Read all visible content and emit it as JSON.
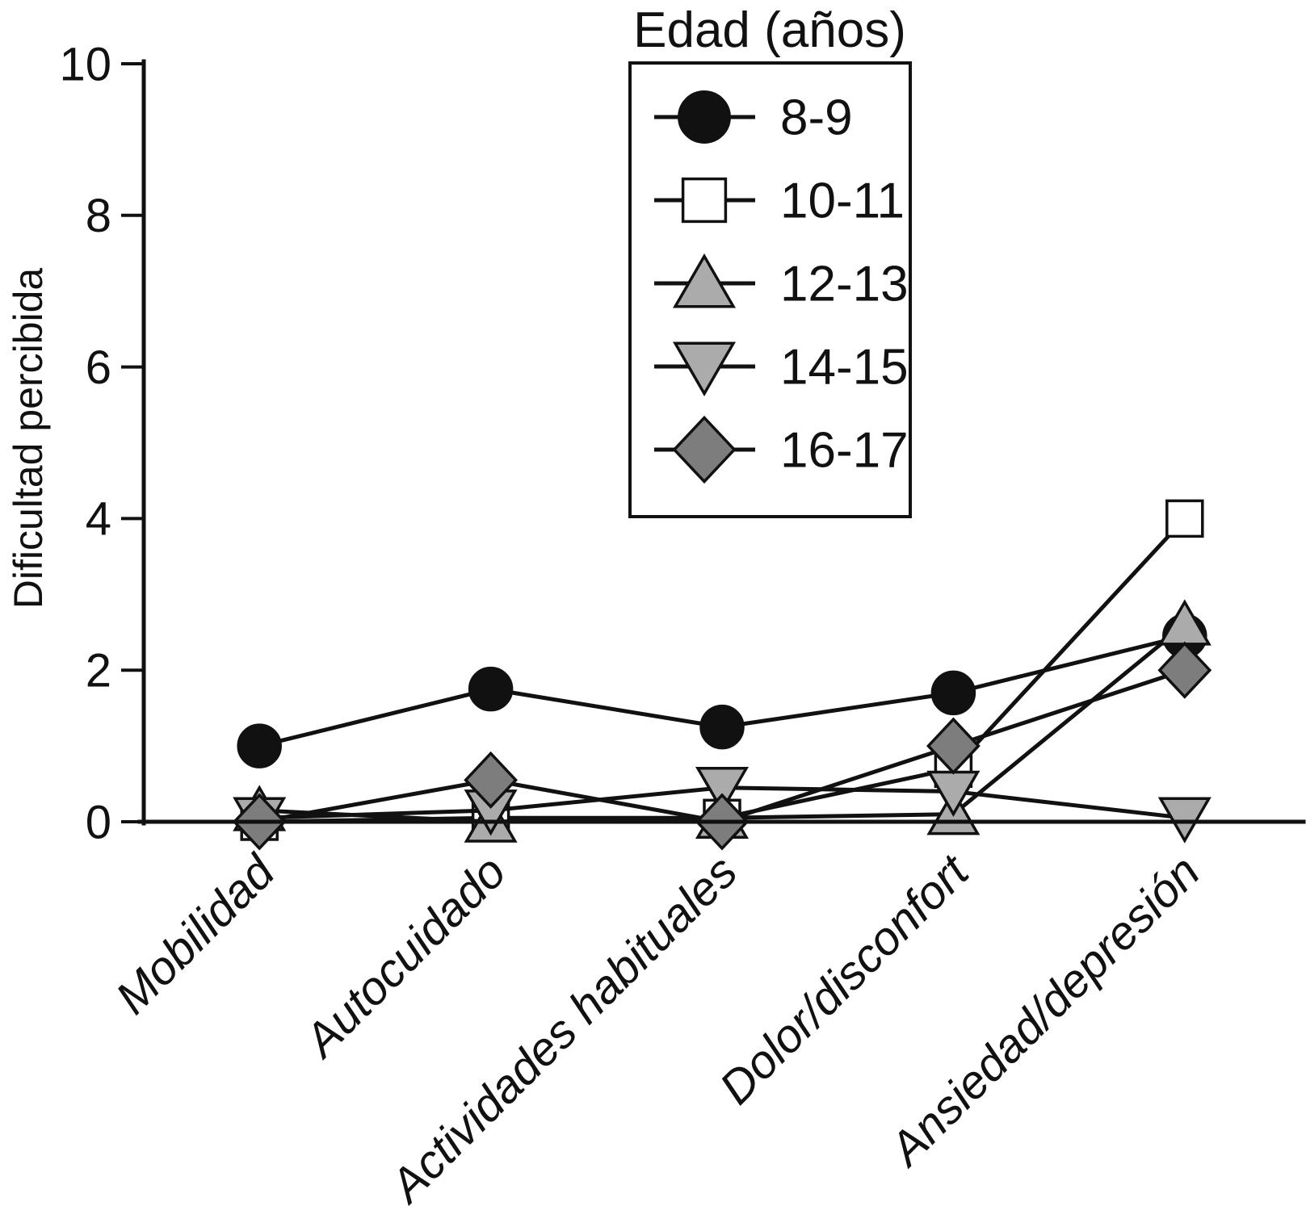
{
  "chart_data": {
    "type": "line",
    "title": "",
    "xlabel": "",
    "ylabel": "Dificultad percibida",
    "ylim": [
      0,
      10
    ],
    "yticks": [
      0,
      2,
      4,
      6,
      8,
      10
    ],
    "grid": false,
    "categories": [
      "Mobilidad",
      "Autocuidado",
      "Actividades habituales",
      "Dolor/disconfort",
      "Ansiedad/depresión"
    ],
    "legend": {
      "title": "Edad (años)",
      "position": "top-center-inside"
    },
    "line_color": "#111111",
    "series": [
      {
        "name": "8-9",
        "marker": "circle",
        "fill": "#111111",
        "values": [
          1.0,
          1.75,
          1.25,
          1.7,
          2.45
        ]
      },
      {
        "name": "10-11",
        "marker": "square",
        "fill": "#ffffff",
        "values": [
          0.0,
          0.05,
          0.05,
          0.7,
          4.0
        ]
      },
      {
        "name": "12-13",
        "marker": "triangle-up",
        "fill": "#ababab",
        "values": [
          0.15,
          0.0,
          0.05,
          0.1,
          2.6
        ]
      },
      {
        "name": "14-15",
        "marker": "triangle-down",
        "fill": "#ababab",
        "values": [
          0.05,
          0.15,
          0.45,
          0.4,
          0.05
        ]
      },
      {
        "name": "16-17",
        "marker": "diamond",
        "fill": "#7d7d7d",
        "values": [
          0.0,
          0.55,
          0.0,
          1.0,
          2.0
        ]
      }
    ]
  }
}
